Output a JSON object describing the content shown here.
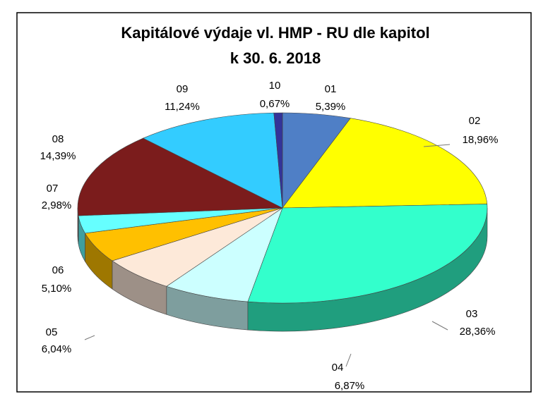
{
  "chart_data": {
    "type": "pie",
    "title": [
      "Kapitálové výdaje vl. HMP - RU dle kapitol",
      "k 30. 6. 2018"
    ],
    "categories": [
      "01",
      "02",
      "03",
      "04",
      "05",
      "06",
      "07",
      "08",
      "09",
      "10"
    ],
    "values": [
      5.39,
      18.96,
      28.36,
      6.87,
      6.04,
      5.1,
      2.98,
      14.39,
      11.24,
      0.67
    ],
    "value_labels": [
      "5,39%",
      "18,96%",
      "28,36%",
      "6,87%",
      "6,04%",
      "5,10%",
      "2,98%",
      "14,39%",
      "11,24%",
      "0,67%"
    ],
    "colors": [
      "#4f7fc6",
      "#ffff00",
      "#33ffcc",
      "#ccffff",
      "#fde9d9",
      "#ffc000",
      "#66ffff",
      "#7b1c1c",
      "#33ccff",
      "#333399"
    ]
  }
}
